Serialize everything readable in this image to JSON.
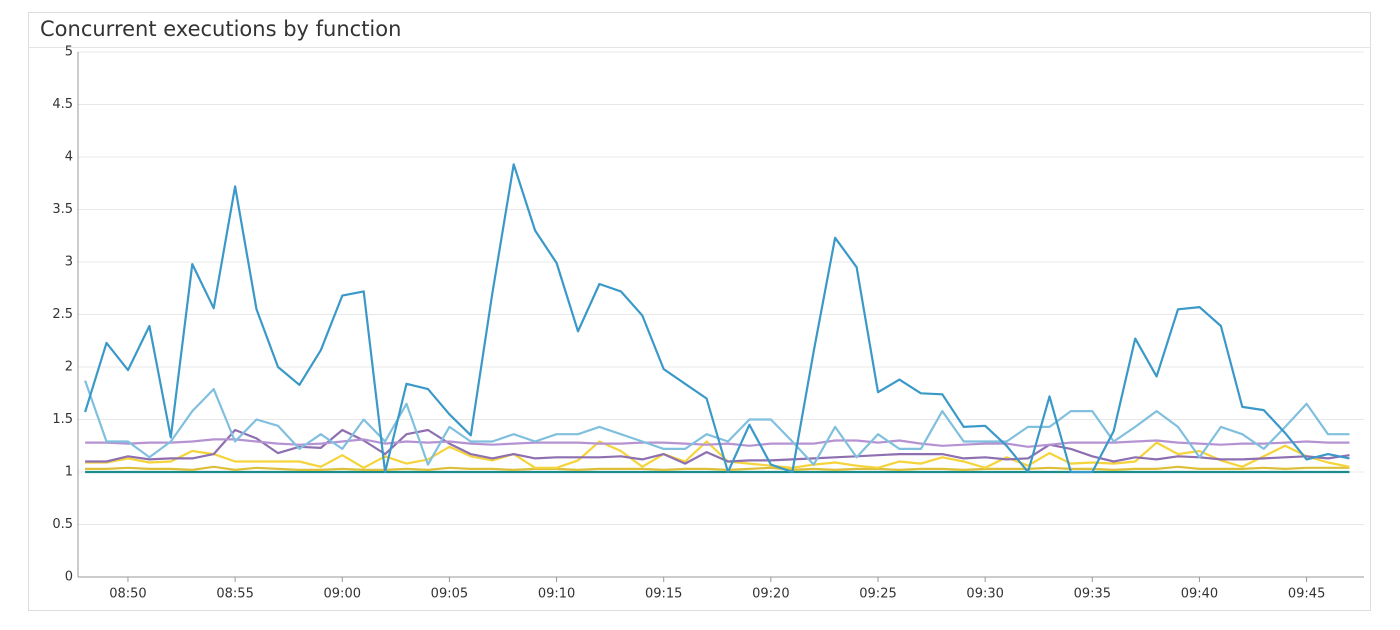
{
  "chart_data": {
    "type": "line",
    "title": "Concurrent executions by function",
    "categories": [
      null,
      null,
      "08:50",
      null,
      null,
      null,
      null,
      "08:55",
      null,
      null,
      null,
      null,
      "09:00",
      null,
      null,
      null,
      null,
      "09:05",
      null,
      null,
      null,
      null,
      "09:10",
      null,
      null,
      null,
      null,
      "09:15",
      null,
      null,
      null,
      null,
      "09:20",
      null,
      null,
      null,
      null,
      "09:25",
      null,
      null,
      null,
      null,
      "09:30",
      null,
      null,
      null,
      null,
      "09:35",
      null,
      null,
      null,
      null,
      "09:40",
      null,
      null,
      null,
      null,
      "09:45",
      null,
      null
    ],
    "ylim": [
      0,
      5
    ],
    "yticks": [
      0,
      0.5,
      1,
      1.5,
      2,
      2.5,
      3,
      3.5,
      4,
      4.5,
      5
    ],
    "grid": true,
    "series": [
      {
        "color": "#1b8c8c",
        "values": [
          1,
          1,
          1,
          1,
          1,
          1,
          1,
          1,
          1,
          1,
          1,
          1,
          1,
          1,
          1,
          1,
          1,
          1,
          1,
          1,
          1,
          1,
          1,
          1,
          1,
          1,
          1,
          1,
          1,
          1,
          1,
          1,
          1,
          1,
          1,
          1,
          1,
          1,
          1,
          1,
          1,
          1,
          1,
          1,
          1,
          1,
          1,
          1,
          1,
          1,
          1,
          1,
          1,
          1,
          1,
          1,
          1,
          1,
          1,
          1
        ]
      },
      {
        "color": "#dcc03c",
        "values": [
          1.03,
          1.03,
          1.04,
          1.03,
          1.03,
          1.02,
          1.05,
          1.02,
          1.04,
          1.03,
          1.02,
          1.02,
          1.03,
          1.02,
          1.02,
          1.03,
          1.02,
          1.04,
          1.03,
          1.03,
          1.02,
          1.03,
          1.03,
          1.02,
          1.03,
          1.03,
          1.03,
          1.02,
          1.03,
          1.03,
          1.02,
          1.03,
          1.04,
          1.02,
          1.03,
          1.02,
          1.03,
          1.03,
          1.02,
          1.03,
          1.03,
          1.02,
          1.03,
          1.03,
          1.03,
          1.04,
          1.03,
          1.03,
          1.02,
          1.03,
          1.03,
          1.05,
          1.03,
          1.03,
          1.03,
          1.04,
          1.03,
          1.04,
          1.04,
          1.04
        ]
      },
      {
        "color": "#f5d33a",
        "values": [
          1.09,
          1.09,
          1.13,
          1.09,
          1.1,
          1.2,
          1.17,
          1.1,
          1.1,
          1.1,
          1.1,
          1.05,
          1.16,
          1.04,
          1.15,
          1.08,
          1.12,
          1.24,
          1.15,
          1.11,
          1.17,
          1.04,
          1.04,
          1.11,
          1.29,
          1.2,
          1.05,
          1.17,
          1.1,
          1.29,
          1.1,
          1.08,
          1.06,
          1.04,
          1.07,
          1.09,
          1.06,
          1.04,
          1.1,
          1.08,
          1.14,
          1.1,
          1.04,
          1.14,
          1.06,
          1.18,
          1.08,
          1.09,
          1.08,
          1.1,
          1.28,
          1.17,
          1.2,
          1.11,
          1.05,
          1.15,
          1.25,
          1.15,
          1.09,
          1.05
        ]
      },
      {
        "color": "#8e6fb0",
        "values": [
          1.1,
          1.1,
          1.15,
          1.12,
          1.13,
          1.13,
          1.17,
          1.4,
          1.32,
          1.18,
          1.24,
          1.23,
          1.4,
          1.3,
          1.17,
          1.36,
          1.4,
          1.27,
          1.17,
          1.13,
          1.17,
          1.13,
          1.14,
          1.14,
          1.14,
          1.15,
          1.12,
          1.17,
          1.08,
          1.19,
          1.1,
          1.11,
          1.11,
          1.12,
          1.13,
          1.14,
          1.15,
          1.16,
          1.17,
          1.17,
          1.17,
          1.13,
          1.14,
          1.12,
          1.13,
          1.26,
          1.22,
          1.15,
          1.1,
          1.14,
          1.12,
          1.15,
          1.14,
          1.12,
          1.12,
          1.13,
          1.14,
          1.15,
          1.13,
          1.16
        ]
      },
      {
        "color": "#b593d2",
        "values": [
          1.28,
          1.28,
          1.27,
          1.28,
          1.28,
          1.29,
          1.31,
          1.31,
          1.29,
          1.27,
          1.26,
          1.27,
          1.29,
          1.31,
          1.27,
          1.29,
          1.28,
          1.29,
          1.27,
          1.26,
          1.27,
          1.28,
          1.28,
          1.28,
          1.27,
          1.27,
          1.28,
          1.28,
          1.27,
          1.26,
          1.27,
          1.25,
          1.27,
          1.27,
          1.27,
          1.3,
          1.3,
          1.28,
          1.3,
          1.27,
          1.25,
          1.26,
          1.27,
          1.27,
          1.24,
          1.26,
          1.28,
          1.28,
          1.28,
          1.29,
          1.3,
          1.28,
          1.27,
          1.26,
          1.27,
          1.27,
          1.28,
          1.29,
          1.28,
          1.28
        ]
      },
      {
        "color": "#80c0de",
        "values": [
          1.87,
          1.29,
          1.29,
          1.14,
          1.29,
          1.58,
          1.79,
          1.29,
          1.5,
          1.44,
          1.22,
          1.36,
          1.22,
          1.5,
          1.29,
          1.65,
          1.07,
          1.43,
          1.29,
          1.29,
          1.36,
          1.29,
          1.36,
          1.36,
          1.43,
          1.36,
          1.29,
          1.22,
          1.22,
          1.36,
          1.29,
          1.5,
          1.5,
          1.29,
          1.07,
          1.43,
          1.14,
          1.36,
          1.22,
          1.22,
          1.58,
          1.29,
          1.29,
          1.29,
          1.43,
          1.43,
          1.58,
          1.58,
          1.29,
          1.43,
          1.58,
          1.43,
          1.14,
          1.43,
          1.36,
          1.22,
          1.43,
          1.65,
          1.36,
          1.36
        ]
      },
      {
        "color": "#3a99c8",
        "values": [
          1.57,
          2.23,
          1.97,
          2.39,
          1.33,
          2.98,
          2.56,
          3.72,
          2.55,
          2.0,
          1.83,
          2.16,
          2.68,
          2.72,
          1.0,
          1.84,
          1.79,
          1.55,
          1.35,
          2.7,
          3.93,
          3.3,
          2.99,
          2.34,
          2.79,
          2.72,
          2.49,
          1.98,
          1.84,
          1.7,
          1.0,
          1.45,
          1.07,
          1.0,
          2.15,
          3.23,
          2.95,
          1.76,
          1.88,
          1.75,
          1.74,
          1.43,
          1.44,
          1.25,
          1.0,
          1.72,
          1.0,
          1.0,
          1.39,
          2.27,
          1.91,
          2.55,
          2.57,
          2.39,
          1.62,
          1.59,
          1.37,
          1.12,
          1.17,
          1.13
        ]
      }
    ]
  }
}
